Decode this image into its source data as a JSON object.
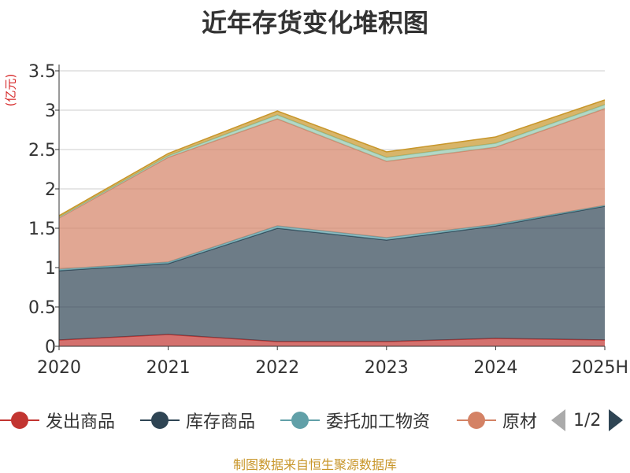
{
  "chart_data": {
    "type": "area",
    "stacked": true,
    "title": "近年存货变化堆积图",
    "ylabel": "(亿元)",
    "categories": [
      "2020",
      "2021",
      "2022",
      "2023",
      "2024",
      "2025H"
    ],
    "ylim": [
      0,
      3.5
    ],
    "yticks": [
      "0",
      "0.5",
      "1",
      "1.5",
      "2",
      "2.5",
      "3",
      "3.5"
    ],
    "grid": true,
    "series": [
      {
        "name": "发出商品",
        "color": "#c23531",
        "values": [
          0.08,
          0.15,
          0.06,
          0.06,
          0.1,
          0.08
        ]
      },
      {
        "name": "库存商品",
        "color": "#2f4554",
        "values": [
          0.88,
          0.9,
          1.44,
          1.29,
          1.43,
          1.7
        ]
      },
      {
        "name": "委托加工物资",
        "color": "#61a0a8",
        "values": [
          0.02,
          0.02,
          0.03,
          0.03,
          0.02,
          0.01
        ]
      },
      {
        "name": "原材料",
        "color": "#d48265",
        "values": [
          0.65,
          1.33,
          1.36,
          0.97,
          0.98,
          1.23
        ]
      },
      {
        "values": [
          0.01,
          0.02,
          0.05,
          0.05,
          0.05,
          0.05
        ],
        "color": "#91c7ae"
      },
      {
        "values": [
          0.02,
          0.03,
          0.05,
          0.07,
          0.08,
          0.06
        ],
        "color": "#c8962a"
      }
    ]
  },
  "legend": {
    "page": "1/2",
    "visible_names": [
      "发出商品",
      "库存商品",
      "委托加工物资",
      "原材"
    ]
  },
  "source": "制图数据来自恒生聚源数据库"
}
